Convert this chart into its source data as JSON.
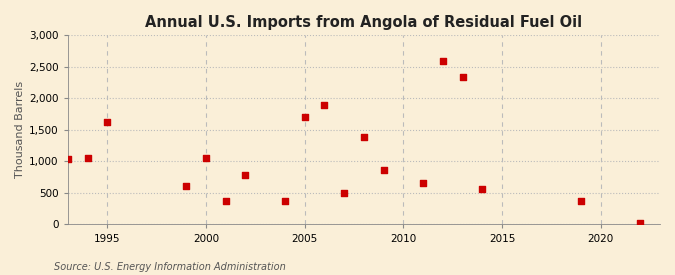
{
  "title": "Annual U.S. Imports from Angola of Residual Fuel Oil",
  "ylabel": "Thousand Barrels",
  "source": "Source: U.S. Energy Information Administration",
  "background_color": "#faefd8",
  "plot_background_color": "#faefd8",
  "marker_color": "#cc0000",
  "years": [
    1993,
    1994,
    1995,
    1999,
    2000,
    2001,
    2002,
    2004,
    2005,
    2006,
    2007,
    2008,
    2009,
    2011,
    2012,
    2013,
    2014,
    2019,
    2022
  ],
  "values": [
    1040,
    1060,
    1620,
    610,
    1050,
    370,
    790,
    370,
    1700,
    1890,
    500,
    1390,
    860,
    660,
    2600,
    2340,
    560,
    380,
    30
  ],
  "ylim": [
    0,
    3000
  ],
  "yticks": [
    0,
    500,
    1000,
    1500,
    2000,
    2500,
    3000
  ],
  "xlim": [
    1993,
    2023
  ],
  "xticks": [
    1995,
    2000,
    2005,
    2010,
    2015,
    2020
  ],
  "grid_color": "#bbbbbb",
  "title_fontsize": 10.5,
  "label_fontsize": 8,
  "tick_fontsize": 7.5,
  "source_fontsize": 7
}
